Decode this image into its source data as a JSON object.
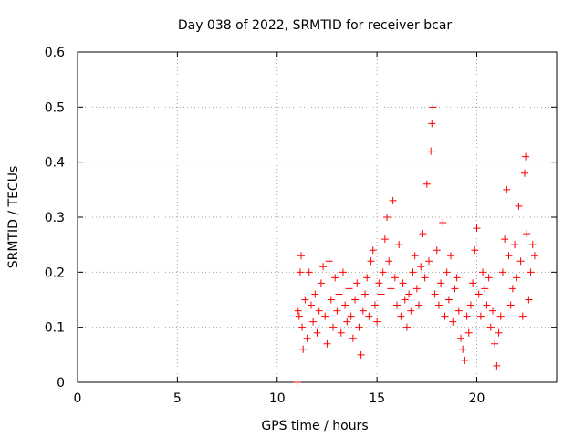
{
  "chart_data": {
    "type": "scatter",
    "title": "Day 038 of 2022, SRMTID for receiver bcar",
    "xlabel": "GPS time / hours",
    "ylabel": "SRMTID / TECUs",
    "xlim": [
      0,
      24
    ],
    "ylim": [
      0,
      0.6
    ],
    "xticks": [
      0,
      5,
      10,
      15,
      20
    ],
    "xtick_labels": [
      "0",
      "5",
      "10",
      "15",
      "20"
    ],
    "yticks": [
      0,
      0.1,
      0.2,
      0.3,
      0.4,
      0.5,
      0.6
    ],
    "ytick_labels": [
      "0",
      "0.1",
      "0.2",
      "0.3",
      "0.4",
      "0.5",
      "0.6"
    ],
    "grid": true,
    "marker": "plus",
    "color": "#ff0000",
    "series": [
      {
        "name": "bcar",
        "points": [
          [
            11.0,
            0.0
          ],
          [
            11.05,
            0.13
          ],
          [
            11.1,
            0.12
          ],
          [
            11.15,
            0.2
          ],
          [
            11.2,
            0.23
          ],
          [
            11.25,
            0.1
          ],
          [
            11.3,
            0.06
          ],
          [
            11.4,
            0.15
          ],
          [
            11.5,
            0.08
          ],
          [
            11.6,
            0.2
          ],
          [
            11.7,
            0.14
          ],
          [
            11.8,
            0.11
          ],
          [
            11.9,
            0.16
          ],
          [
            12.0,
            0.09
          ],
          [
            12.1,
            0.13
          ],
          [
            12.2,
            0.18
          ],
          [
            12.3,
            0.21
          ],
          [
            12.4,
            0.12
          ],
          [
            12.5,
            0.07
          ],
          [
            12.6,
            0.22
          ],
          [
            12.7,
            0.15
          ],
          [
            12.8,
            0.1
          ],
          [
            12.9,
            0.19
          ],
          [
            13.0,
            0.13
          ],
          [
            13.1,
            0.16
          ],
          [
            13.2,
            0.09
          ],
          [
            13.3,
            0.2
          ],
          [
            13.4,
            0.14
          ],
          [
            13.5,
            0.11
          ],
          [
            13.6,
            0.17
          ],
          [
            13.7,
            0.12
          ],
          [
            13.8,
            0.08
          ],
          [
            13.9,
            0.15
          ],
          [
            14.0,
            0.18
          ],
          [
            14.1,
            0.1
          ],
          [
            14.2,
            0.05
          ],
          [
            14.3,
            0.13
          ],
          [
            14.4,
            0.16
          ],
          [
            14.5,
            0.19
          ],
          [
            14.6,
            0.12
          ],
          [
            14.7,
            0.22
          ],
          [
            14.8,
            0.24
          ],
          [
            14.9,
            0.14
          ],
          [
            15.0,
            0.11
          ],
          [
            15.1,
            0.18
          ],
          [
            15.2,
            0.16
          ],
          [
            15.3,
            0.2
          ],
          [
            15.4,
            0.26
          ],
          [
            15.5,
            0.3
          ],
          [
            15.6,
            0.22
          ],
          [
            15.7,
            0.17
          ],
          [
            15.8,
            0.33
          ],
          [
            15.9,
            0.19
          ],
          [
            16.0,
            0.14
          ],
          [
            16.1,
            0.25
          ],
          [
            16.2,
            0.12
          ],
          [
            16.3,
            0.18
          ],
          [
            16.4,
            0.15
          ],
          [
            16.5,
            0.1
          ],
          [
            16.6,
            0.16
          ],
          [
            16.7,
            0.13
          ],
          [
            16.8,
            0.2
          ],
          [
            16.9,
            0.23
          ],
          [
            17.0,
            0.17
          ],
          [
            17.1,
            0.14
          ],
          [
            17.2,
            0.21
          ],
          [
            17.3,
            0.27
          ],
          [
            17.4,
            0.19
          ],
          [
            17.5,
            0.36
          ],
          [
            17.6,
            0.22
          ],
          [
            17.7,
            0.42
          ],
          [
            17.75,
            0.47
          ],
          [
            17.8,
            0.5
          ],
          [
            17.9,
            0.16
          ],
          [
            18.0,
            0.24
          ],
          [
            18.1,
            0.14
          ],
          [
            18.2,
            0.18
          ],
          [
            18.3,
            0.29
          ],
          [
            18.4,
            0.12
          ],
          [
            18.5,
            0.2
          ],
          [
            18.6,
            0.15
          ],
          [
            18.7,
            0.23
          ],
          [
            18.8,
            0.11
          ],
          [
            18.9,
            0.17
          ],
          [
            19.0,
            0.19
          ],
          [
            19.1,
            0.13
          ],
          [
            19.2,
            0.08
          ],
          [
            19.3,
            0.06
          ],
          [
            19.4,
            0.04
          ],
          [
            19.5,
            0.12
          ],
          [
            19.6,
            0.09
          ],
          [
            19.7,
            0.14
          ],
          [
            19.8,
            0.18
          ],
          [
            19.9,
            0.24
          ],
          [
            20.0,
            0.28
          ],
          [
            20.1,
            0.16
          ],
          [
            20.2,
            0.12
          ],
          [
            20.3,
            0.2
          ],
          [
            20.4,
            0.17
          ],
          [
            20.5,
            0.14
          ],
          [
            20.6,
            0.19
          ],
          [
            20.7,
            0.1
          ],
          [
            20.8,
            0.13
          ],
          [
            20.9,
            0.07
          ],
          [
            21.0,
            0.03
          ],
          [
            21.1,
            0.09
          ],
          [
            21.2,
            0.12
          ],
          [
            21.3,
            0.2
          ],
          [
            21.4,
            0.26
          ],
          [
            21.5,
            0.35
          ],
          [
            21.6,
            0.23
          ],
          [
            21.7,
            0.14
          ],
          [
            21.8,
            0.17
          ],
          [
            21.9,
            0.25
          ],
          [
            22.0,
            0.19
          ],
          [
            22.1,
            0.32
          ],
          [
            22.2,
            0.22
          ],
          [
            22.3,
            0.12
          ],
          [
            22.4,
            0.38
          ],
          [
            22.45,
            0.41
          ],
          [
            22.5,
            0.27
          ],
          [
            22.6,
            0.15
          ],
          [
            22.7,
            0.2
          ],
          [
            22.8,
            0.25
          ],
          [
            22.9,
            0.23
          ]
        ]
      }
    ]
  }
}
